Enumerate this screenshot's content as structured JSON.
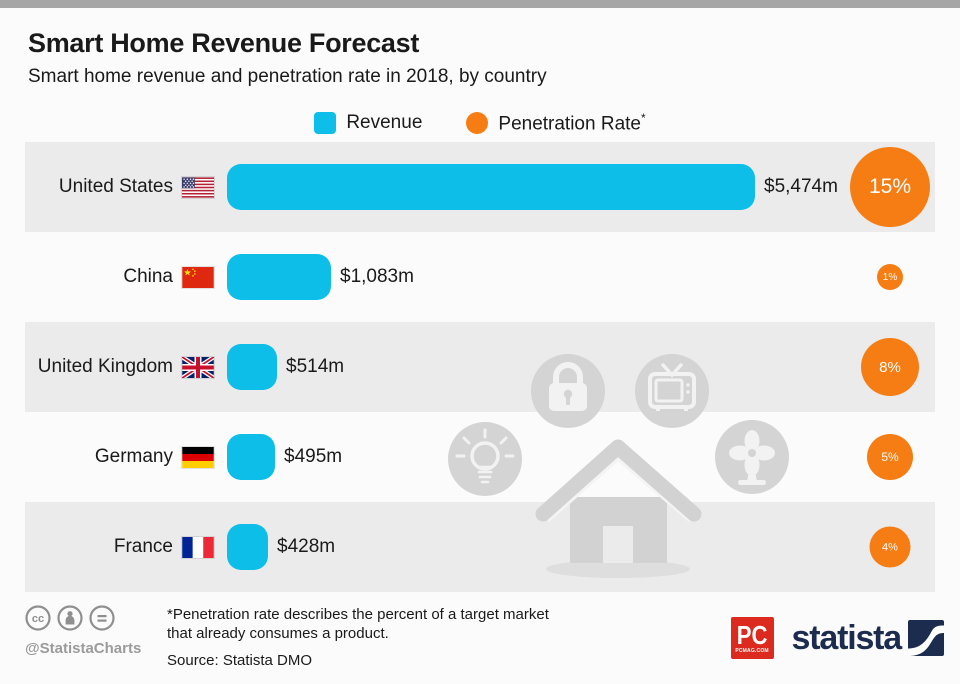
{
  "header": {
    "title": "Smart Home Revenue Forecast",
    "subtitle": "Smart home revenue and penetration rate in 2018, by country"
  },
  "legend": {
    "revenue_label": "Revenue",
    "penetration_label": "Penetration Rate",
    "penetration_asterisk": "*"
  },
  "chart_data": {
    "type": "bar",
    "title": "Smart Home Revenue Forecast",
    "subtitle": "Smart home revenue and penetration rate in 2018, by country",
    "orientation": "horizontal",
    "categories": [
      "United States",
      "China",
      "United Kingdom",
      "Germany",
      "France"
    ],
    "countries": [
      {
        "name": "United States",
        "flag": "us"
      },
      {
        "name": "China",
        "flag": "cn"
      },
      {
        "name": "United Kingdom",
        "flag": "gb"
      },
      {
        "name": "Germany",
        "flag": "de"
      },
      {
        "name": "France",
        "flag": "fr"
      }
    ],
    "series": [
      {
        "name": "Revenue",
        "unit": "USD million",
        "values": [
          5474,
          1083,
          514,
          495,
          428
        ],
        "labels": [
          "$5,474m",
          "$1,083m",
          "$514m",
          "$495m",
          "$428m"
        ],
        "color": "#0DBFE8",
        "mark": "bar"
      },
      {
        "name": "Penetration Rate",
        "unit": "%",
        "values": [
          15,
          1,
          8,
          5,
          4
        ],
        "labels": [
          "15%",
          "1%",
          "8%",
          "5%",
          "4%"
        ],
        "color": "#F67D13",
        "mark": "sized-circle"
      }
    ],
    "xlim": [
      0,
      5474
    ],
    "grid": false,
    "legend_position": "top",
    "row_striping": "odd rows shaded"
  },
  "watermark": {
    "icons": [
      "house-icon",
      "padlock-icon",
      "tv-icon",
      "lightbulb-icon",
      "fan-icon"
    ]
  },
  "footer": {
    "handle": "@StatistaCharts",
    "license_icons": [
      "cc-icon",
      "attribution-person-icon",
      "no-derivatives-equals-icon"
    ],
    "footnote_line1": "*Penetration rate describes the percent of a target market",
    "footnote_line2": "that already consumes a product.",
    "source": "Source: Statista DMO",
    "pcmag_logo_text": "PC",
    "pcmag_logo_subtext": "PCMAG.COM",
    "statista_logo_text": "statista"
  },
  "colors": {
    "revenue_bar": "#0DBFE8",
    "penetration_circle": "#F67D13",
    "row_stripe": "#EBEBEB",
    "background": "#FBFBFB",
    "top_bar": "#A6A6A6",
    "text": "#1A1A1A",
    "muted_gray": "#9B9B9B",
    "statista_navy": "#1B2C4E",
    "pcmag_red": "#DC2A1E",
    "watermark_gray": "#D2D2D2"
  }
}
